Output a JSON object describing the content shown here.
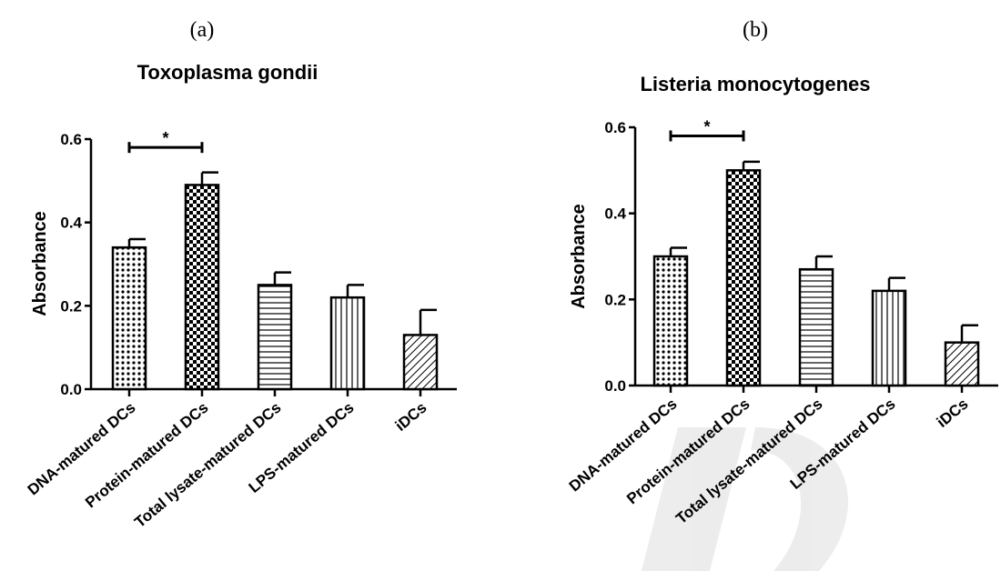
{
  "figure": {
    "watermark_text": "TD"
  },
  "chart_data": [
    {
      "type": "bar",
      "panel_label": "(a)",
      "title": "Toxoplasma gondii",
      "xlabel": "",
      "ylabel": "Absorbance",
      "ylim": [
        0,
        0.6
      ],
      "yticks": [
        "0.0",
        "0.2",
        "0.4",
        "0.6"
      ],
      "categories": [
        "DNA-matured DCs",
        "Protein-matured DCs",
        "Total lysate-matured DCs",
        "LPS-matured DCs",
        "iDCs"
      ],
      "values": [
        0.34,
        0.49,
        0.25,
        0.22,
        0.13
      ],
      "errors": [
        0.02,
        0.03,
        0.03,
        0.03,
        0.06
      ],
      "patterns": [
        "dots",
        "checker",
        "hlines",
        "vlines",
        "diagonal"
      ],
      "significance": {
        "from": 0,
        "to": 1,
        "label": "*",
        "y": 0.58
      }
    },
    {
      "type": "bar",
      "panel_label": "(b)",
      "title": "Listeria monocytogenes",
      "xlabel": "",
      "ylabel": "Absorbance",
      "ylim": [
        0,
        0.6
      ],
      "yticks": [
        "0.0",
        "0.2",
        "0.4",
        "0.6"
      ],
      "categories": [
        "DNA-matured DCs",
        "Protein-matured DCs",
        "Total lysate-matured DCs",
        "LPS-matured DCs",
        "iDCs"
      ],
      "values": [
        0.3,
        0.5,
        0.27,
        0.22,
        0.1
      ],
      "errors": [
        0.02,
        0.02,
        0.03,
        0.03,
        0.04
      ],
      "patterns": [
        "dots",
        "checker",
        "hlines",
        "vlines",
        "diagonal"
      ],
      "significance": {
        "from": 0,
        "to": 1,
        "label": "*",
        "y": 0.58
      }
    }
  ]
}
